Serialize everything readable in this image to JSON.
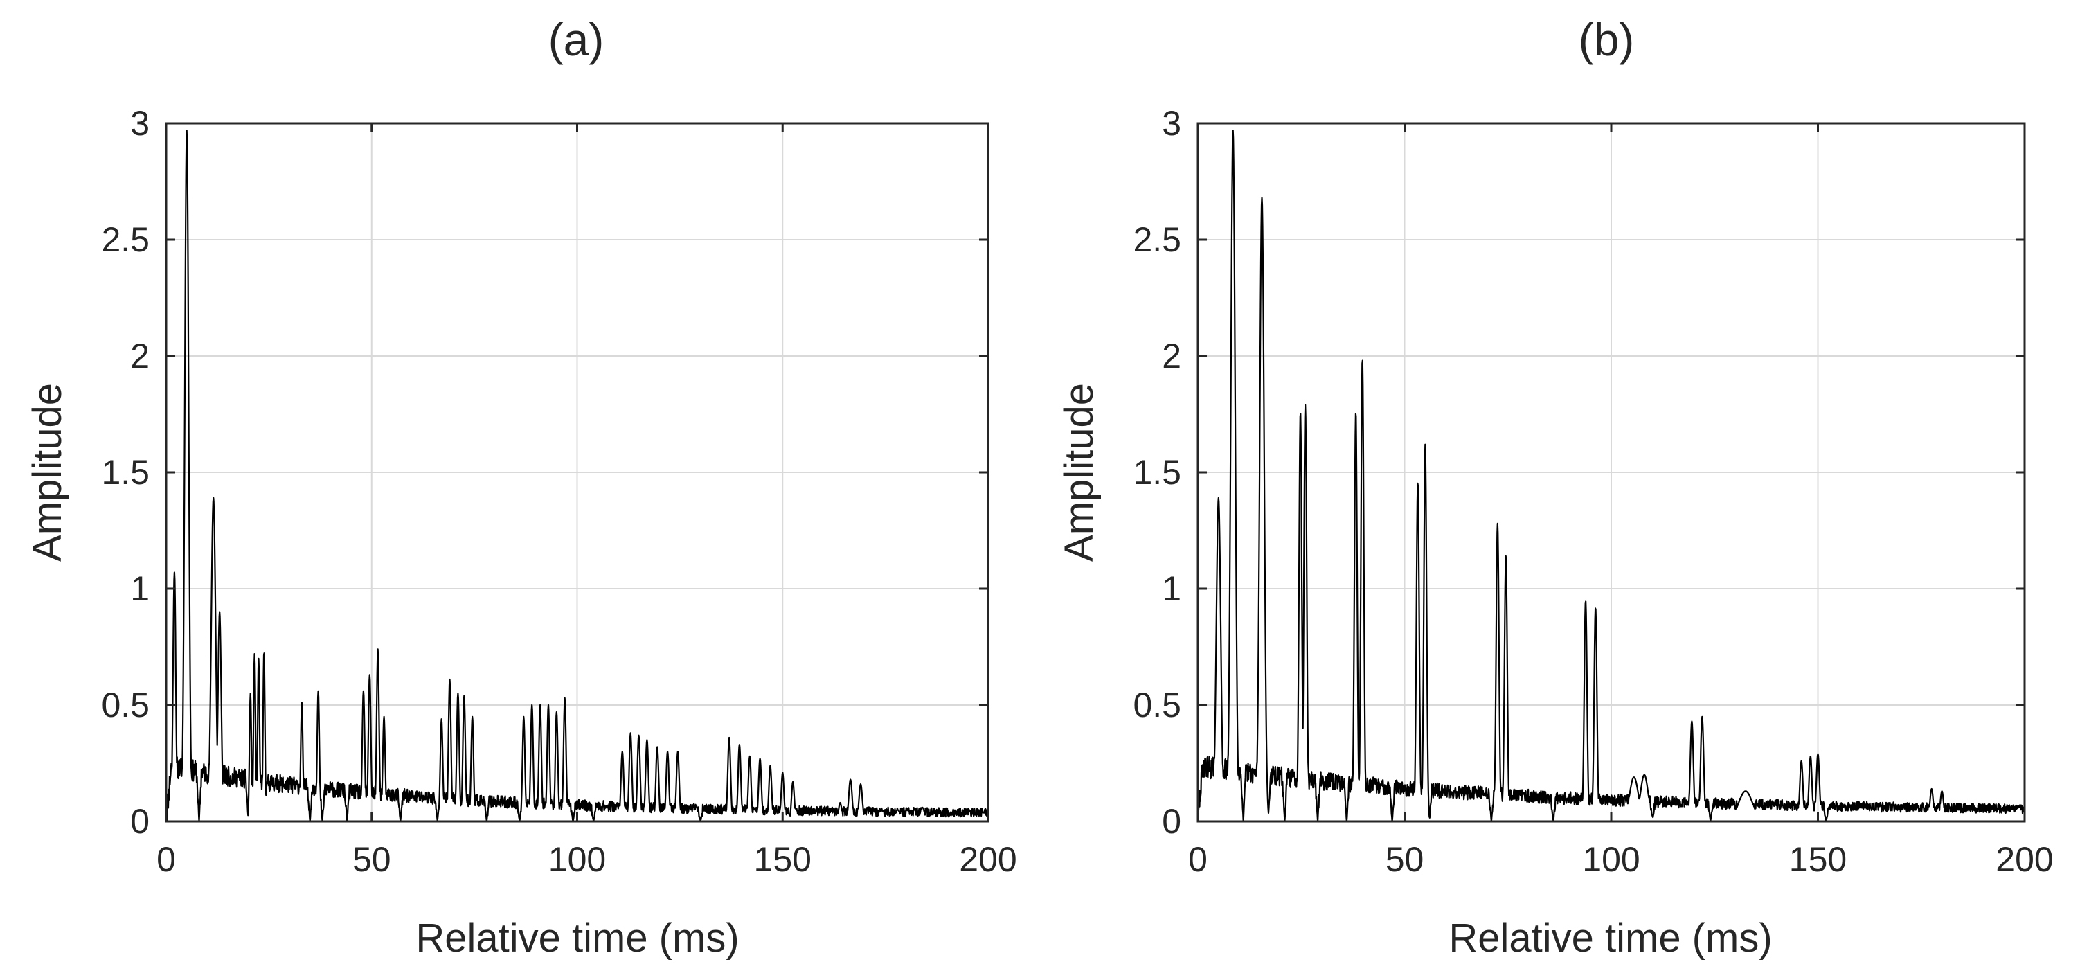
{
  "chart_data": [
    {
      "type": "line",
      "title": "(a)",
      "xlabel": "Relative time (ms)",
      "ylabel": "Amplitude",
      "xlim": [
        0,
        200
      ],
      "ylim": [
        0,
        3
      ],
      "xticks": [
        0,
        50,
        100,
        150,
        200
      ],
      "yticks": [
        0,
        0.5,
        1,
        1.5,
        2,
        2.5,
        3
      ],
      "xtick_labels": [
        "0",
        "50",
        "100",
        "150",
        "200"
      ],
      "ytick_labels": [
        "0",
        "0.5",
        "1",
        "1.5",
        "2",
        "2.5",
        "3"
      ],
      "grid": true,
      "line_color": "#000000",
      "baseline": {
        "base": 0.24,
        "decay_ms": 60,
        "floor": 0.03,
        "noise": 0.05,
        "dips": [
          8,
          12,
          20,
          24,
          35,
          38,
          44,
          53,
          57,
          66,
          78,
          86,
          99,
          104,
          130,
          152
        ]
      },
      "peaks": [
        [
          2.0,
          1.07,
          0.5
        ],
        [
          5.0,
          2.97,
          0.7
        ],
        [
          11.5,
          1.39,
          0.8
        ],
        [
          13.0,
          0.9,
          0.6
        ],
        [
          20.5,
          0.55,
          0.35
        ],
        [
          21.5,
          0.72,
          0.35
        ],
        [
          22.5,
          0.7,
          0.35
        ],
        [
          23.8,
          0.73,
          0.35
        ],
        [
          33.0,
          0.51,
          0.4
        ],
        [
          37.0,
          0.56,
          0.4
        ],
        [
          48.0,
          0.56,
          0.45
        ],
        [
          49.5,
          0.63,
          0.45
        ],
        [
          51.5,
          0.74,
          0.45
        ],
        [
          53.0,
          0.45,
          0.45
        ],
        [
          67.0,
          0.44,
          0.45
        ],
        [
          69.0,
          0.61,
          0.45
        ],
        [
          71.0,
          0.55,
          0.45
        ],
        [
          72.5,
          0.54,
          0.45
        ],
        [
          74.5,
          0.45,
          0.45
        ],
        [
          87.0,
          0.45,
          0.45
        ],
        [
          89.0,
          0.5,
          0.45
        ],
        [
          91.0,
          0.5,
          0.45
        ],
        [
          93.0,
          0.5,
          0.45
        ],
        [
          95.0,
          0.47,
          0.45
        ],
        [
          97.0,
          0.53,
          0.45
        ],
        [
          111.0,
          0.3,
          0.5
        ],
        [
          113.0,
          0.38,
          0.5
        ],
        [
          115.0,
          0.37,
          0.5
        ],
        [
          117.0,
          0.35,
          0.5
        ],
        [
          119.5,
          0.32,
          0.5
        ],
        [
          122.0,
          0.3,
          0.5
        ],
        [
          124.5,
          0.3,
          0.5
        ],
        [
          137.0,
          0.36,
          0.5
        ],
        [
          139.5,
          0.33,
          0.5
        ],
        [
          142.0,
          0.28,
          0.5
        ],
        [
          144.5,
          0.27,
          0.5
        ],
        [
          147.0,
          0.24,
          0.5
        ],
        [
          150.0,
          0.21,
          0.5
        ],
        [
          152.5,
          0.17,
          0.5
        ],
        [
          164.0,
          0.08,
          0.6
        ],
        [
          166.5,
          0.18,
          0.6
        ],
        [
          169.0,
          0.16,
          0.6
        ],
        [
          178.0,
          0.05,
          0.8
        ],
        [
          184.0,
          0.06,
          0.8
        ]
      ]
    },
    {
      "type": "line",
      "title": "(b)",
      "xlabel": "Relative time (ms)",
      "ylabel": "Amplitude",
      "xlim": [
        0,
        200
      ],
      "ylim": [
        0,
        3
      ],
      "xticks": [
        0,
        50,
        100,
        150,
        200
      ],
      "yticks": [
        0,
        0.5,
        1,
        1.5,
        2,
        2.5,
        3
      ],
      "xtick_labels": [
        "0",
        "50",
        "100",
        "150",
        "200"
      ],
      "ytick_labels": [
        "0",
        "0.5",
        "1",
        "1.5",
        "2",
        "2.5",
        "3"
      ],
      "grid": true,
      "line_color": "#000000",
      "baseline": {
        "base": 0.24,
        "decay_ms": 75,
        "floor": 0.04,
        "noise": 0.05,
        "dips": [
          11,
          17,
          21,
          29,
          36,
          47,
          56,
          71,
          86,
          110,
          124,
          146,
          152
        ]
      },
      "peaks": [
        [
          5.0,
          1.39,
          0.8
        ],
        [
          8.5,
          2.97,
          0.8
        ],
        [
          15.5,
          2.68,
          0.8
        ],
        [
          24.8,
          1.76,
          0.5
        ],
        [
          26.0,
          1.79,
          0.5
        ],
        [
          38.2,
          1.76,
          0.5
        ],
        [
          39.8,
          1.99,
          0.5
        ],
        [
          53.2,
          1.46,
          0.5
        ],
        [
          55.0,
          1.62,
          0.5
        ],
        [
          72.5,
          1.28,
          0.5
        ],
        [
          74.5,
          1.14,
          0.5
        ],
        [
          93.8,
          0.95,
          0.5
        ],
        [
          96.2,
          0.92,
          0.5
        ],
        [
          105.5,
          0.19,
          1.6
        ],
        [
          108.0,
          0.2,
          1.4
        ],
        [
          119.5,
          0.43,
          0.55
        ],
        [
          122.0,
          0.45,
          0.55
        ],
        [
          132.5,
          0.13,
          2.5
        ],
        [
          146.0,
          0.26,
          0.55
        ],
        [
          148.2,
          0.28,
          0.55
        ],
        [
          150.0,
          0.29,
          0.55
        ],
        [
          177.5,
          0.14,
          0.6
        ],
        [
          180.0,
          0.13,
          0.6
        ]
      ]
    }
  ]
}
